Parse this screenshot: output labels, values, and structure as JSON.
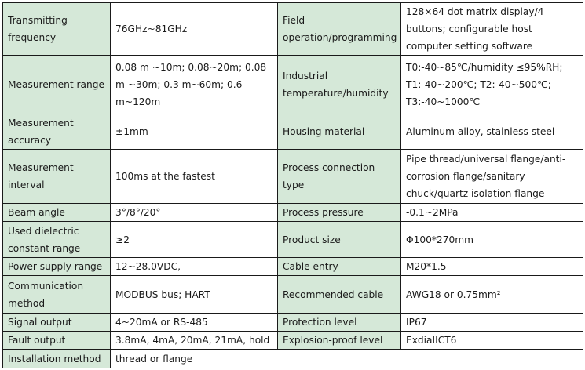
{
  "rows": [
    {
      "k1": "Transmitting frequency",
      "v1": "76GHz~81GHz",
      "k2": "Field operation/programming",
      "v2": "128×64 dot matrix display/4 buttons; configurable host computer setting software"
    },
    {
      "k1": "Measurement range",
      "v1": "0.08 m ~10m; 0.08~20m; 0.08 m ~30m; 0.3 m~60m; 0.6 m~120m",
      "k2": "Industrial temperature/humidity",
      "v2": "T0:-40~85℃/humidity ≤95%RH; T1:-40~200℃; T2:-40~500℃; T3:-40~1000℃"
    },
    {
      "k1": "Measurement accuracy",
      "v1": "±1mm",
      "k2": "Housing material",
      "v2": "Aluminum alloy, stainless steel"
    },
    {
      "k1": "Measurement interval",
      "v1": "100ms at the fastest",
      "k2": "Process connection type",
      "v2": "Pipe thread/universal flange/anti-corrosion flange/sanitary chuck/quartz isolation flange"
    },
    {
      "k1": "Beam angle",
      "v1": "3°/8°/20°",
      "k2": "Process pressure",
      "v2": "-0.1~2MPa"
    },
    {
      "k1": "Used dielectric constant range",
      "v1": "≥2",
      "k2": "Product size",
      "v2": "Φ100*270mm"
    },
    {
      "k1": "Power supply range",
      "v1": "12~28.0VDC,",
      "k2": "Cable entry",
      "v2": "M20*1.5"
    },
    {
      "k1": "Communication method",
      "v1": "MODBUS bus; HART",
      "k2": "Recommended cable",
      "v2": "AWG18 or 0.75mm²"
    },
    {
      "k1": "Signal output",
      "v1": "4~20mA or RS-485",
      "k2": "Protection level",
      "v2": "IP67"
    },
    {
      "k1": "Fault output",
      "v1": "3.8mA, 4mA, 20mA, 21mA, hold",
      "k2": "Explosion-proof level",
      "v2": "ExdiaIICT6"
    }
  ],
  "last": {
    "k": "Installation method",
    "v": "thread or flange"
  }
}
